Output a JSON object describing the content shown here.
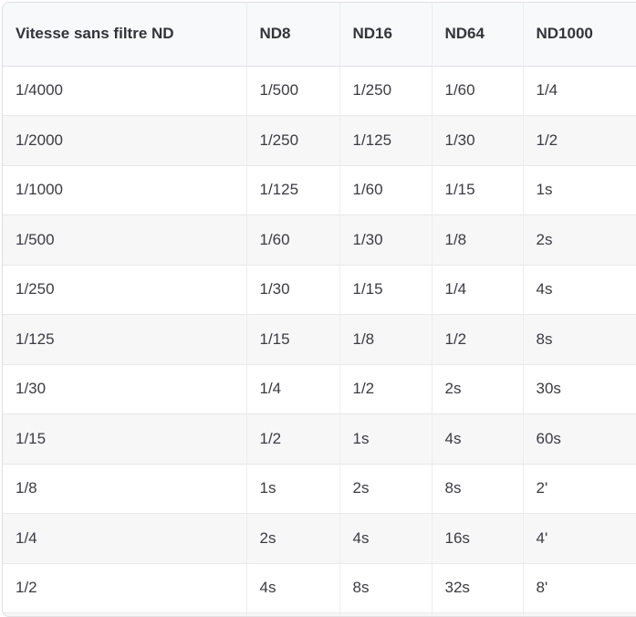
{
  "table": {
    "columns": [
      "Vitesse sans filtre ND",
      "ND8",
      "ND16",
      "ND64",
      "ND1000"
    ],
    "rows": [
      [
        "1/4000",
        "1/500",
        "1/250",
        "1/60",
        "1/4"
      ],
      [
        "1/2000",
        "1/250",
        "1/125",
        "1/30",
        "1/2"
      ],
      [
        "1/1000",
        "1/125",
        "1/60",
        "1/15",
        "1s"
      ],
      [
        "1/500",
        "1/60",
        "1/30",
        "1/8",
        "2s"
      ],
      [
        "1/250",
        "1/30",
        "1/15",
        "1/4",
        "4s"
      ],
      [
        "1/125",
        "1/15",
        "1/8",
        "1/2",
        "8s"
      ],
      [
        "1/30",
        "1/4",
        "1/2",
        "2s",
        "30s"
      ],
      [
        "1/15",
        "1/2",
        "1s",
        "4s",
        "60s"
      ],
      [
        "1/8",
        "1s",
        "2s",
        "8s",
        "2'"
      ],
      [
        "1/4",
        "2s",
        "4s",
        "16s",
        "4'"
      ],
      [
        "1/2",
        "4s",
        "8s",
        "32s",
        "8'"
      ]
    ],
    "colors": {
      "header_bg": "#f8f9fa",
      "stripe_bg": "#f7f7f8",
      "row_bg": "#ffffff",
      "border": "#e1e1e4",
      "header_text": "#33333a",
      "body_text": "#3b3b41"
    }
  }
}
